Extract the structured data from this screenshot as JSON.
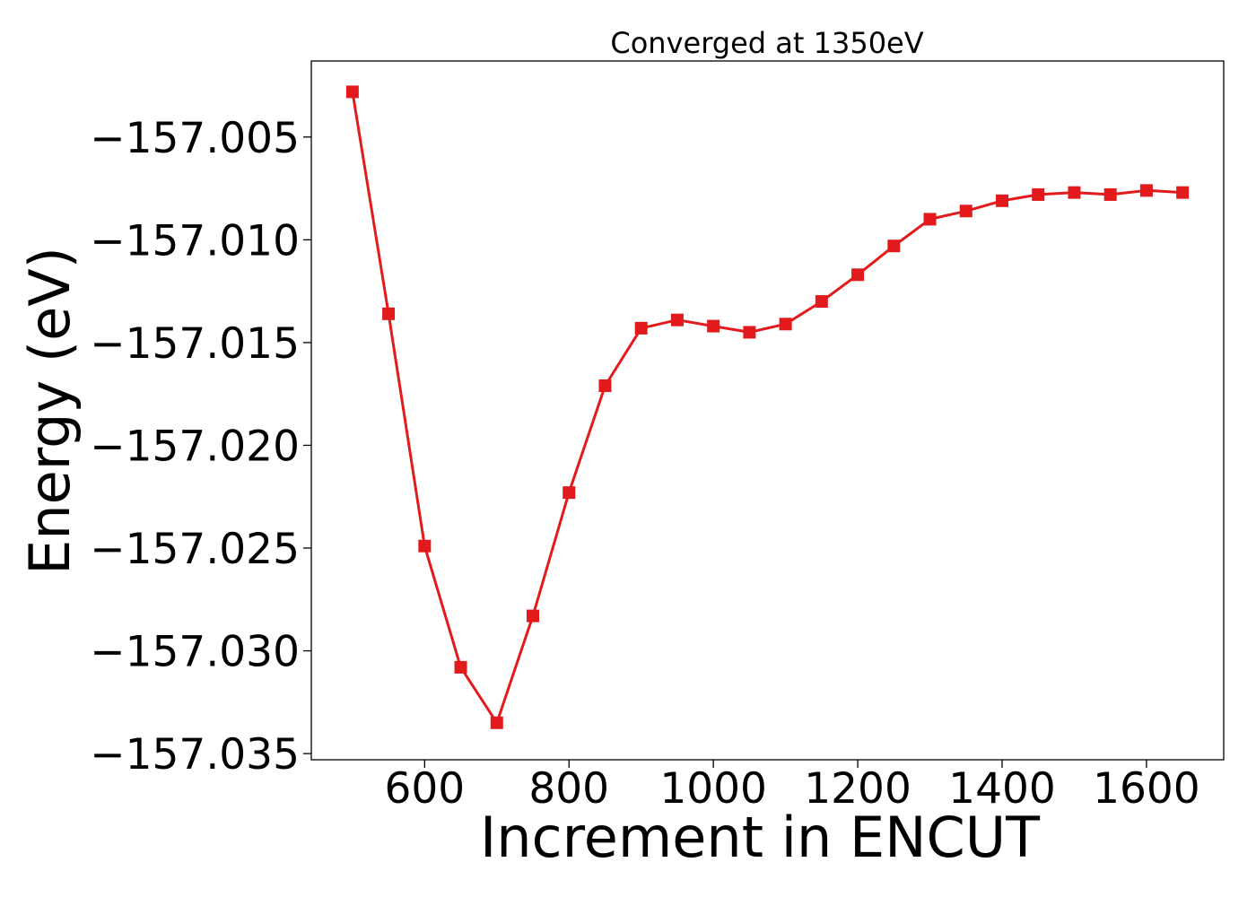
{
  "chart_data": {
    "type": "line",
    "title": "Converged at 1350eV",
    "xlabel": "Increment in ENCUT",
    "ylabel": "Energy (eV)",
    "xlim": [
      443,
      1707
    ],
    "ylim": [
      -157.0353,
      -157.0013
    ],
    "xticks": [
      600,
      800,
      1000,
      1200,
      1400,
      1600
    ],
    "xtick_labels": [
      "600",
      "800",
      "1000",
      "1200",
      "1400",
      "1600"
    ],
    "yticks": [
      -157.005,
      -157.01,
      -157.015,
      -157.02,
      -157.025,
      -157.03,
      -157.035
    ],
    "ytick_labels": [
      "−157.005",
      "−157.010",
      "−157.015",
      "−157.020",
      "−157.025",
      "−157.030",
      "−157.035"
    ],
    "grid": false,
    "series": [
      {
        "color": "#e31a1c",
        "marker": "square",
        "x": [
          500,
          550,
          600,
          650,
          700,
          750,
          800,
          850,
          900,
          950,
          1000,
          1050,
          1100,
          1150,
          1200,
          1250,
          1300,
          1350,
          1400,
          1450,
          1500,
          1550,
          1600,
          1650
        ],
        "y": [
          -157.0028,
          -157.0136,
          -157.0249,
          -157.0308,
          -157.0335,
          -157.0283,
          -157.0223,
          -157.0171,
          -157.0143,
          -157.0139,
          -157.0142,
          -157.0145,
          -157.0141,
          -157.013,
          -157.0117,
          -157.0103,
          -157.009,
          -157.0086,
          -157.0081,
          -157.0078,
          -157.0077,
          -157.0078,
          -157.0076,
          -157.0077
        ]
      }
    ]
  }
}
